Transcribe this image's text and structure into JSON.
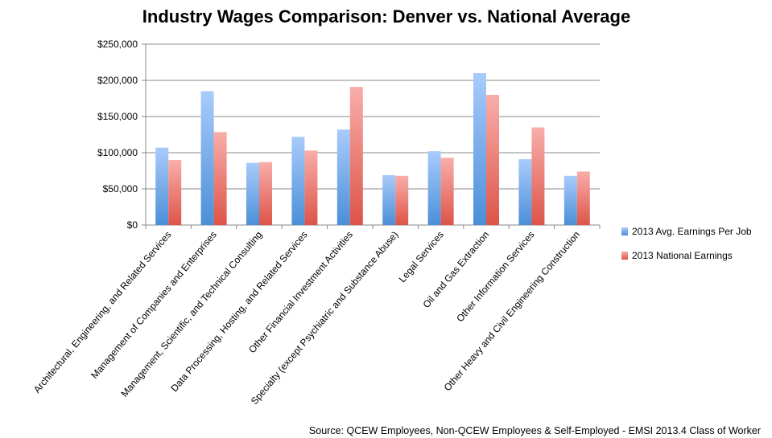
{
  "chart_data": {
    "type": "bar",
    "title": "Industry Wages Comparison: Denver vs. National Average",
    "xlabel": "",
    "ylabel": "",
    "ylim": [
      0,
      250000
    ],
    "yticks": [
      0,
      50000,
      100000,
      150000,
      200000,
      250000
    ],
    "ytick_labels": [
      "$0",
      "$50,000",
      "$100,000",
      "$150,000",
      "$200,000",
      "$250,000"
    ],
    "grid": true,
    "legend_position": "right",
    "categories": [
      "Architectural, Engineering, and Related Services",
      "Management of Companies and Enterprises",
      "Management, Scientific, and Technical Consulting",
      "Data Processing, Hosting, and Related Services",
      "Other Financial Investment Activities",
      "Specialty (except Psychiatric and Substance Abuse)",
      "Legal Services",
      "Oil and Gas Extraction",
      "Other Information Services",
      "Other Heavy and Civil Engineering Construction"
    ],
    "series": [
      {
        "name": "2013 Avg. Earnings Per Job",
        "color": "#5b9bd5",
        "values": [
          107000,
          185000,
          86000,
          122000,
          132000,
          69000,
          102000,
          210000,
          91000,
          68000
        ]
      },
      {
        "name": "2013 National Earnings",
        "color": "#e0605a",
        "values": [
          90000,
          128500,
          87000,
          103000,
          191000,
          68000,
          93000,
          180000,
          135000,
          74000
        ]
      }
    ],
    "source": "Source: QCEW Employees, Non-QCEW Employees & Self-Employed - EMSI 2013.4 Class of Worker"
  }
}
